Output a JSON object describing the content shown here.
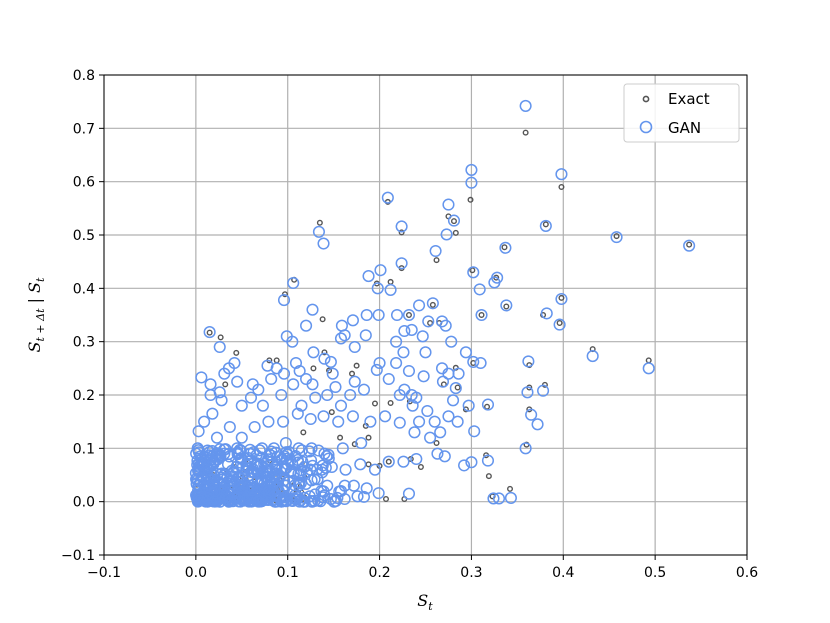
{
  "chart_data": {
    "type": "scatter",
    "xlabel": "S_t",
    "ylabel": "S_{t+Δt} | S_t",
    "xlim": [
      -0.1,
      0.6
    ],
    "ylim": [
      -0.1,
      0.8
    ],
    "xticks": [
      "−0.1",
      "0.0",
      "0.1",
      "0.2",
      "0.3",
      "0.4",
      "0.5",
      "0.6"
    ],
    "yticks": [
      "−0.1",
      "0.0",
      "0.1",
      "0.2",
      "0.3",
      "0.4",
      "0.5",
      "0.6",
      "0.7",
      "0.8"
    ],
    "grid": true,
    "legend_position": "top-right",
    "colors": {
      "exact": "#555555",
      "gan": "#6495ED",
      "grid": "#b0b0b0"
    },
    "series": [
      {
        "name": "Exact",
        "marker": "small-circle",
        "points": [
          [
            0.359,
            0.692
          ],
          [
            0.398,
            0.59
          ],
          [
            0.299,
            0.566
          ],
          [
            0.209,
            0.562
          ],
          [
            0.275,
            0.535
          ],
          [
            0.135,
            0.523
          ],
          [
            0.381,
            0.52
          ],
          [
            0.281,
            0.526
          ],
          [
            0.224,
            0.505
          ],
          [
            0.283,
            0.504
          ],
          [
            0.336,
            0.477
          ],
          [
            0.458,
            0.498
          ],
          [
            0.537,
            0.482
          ],
          [
            0.262,
            0.453
          ],
          [
            0.301,
            0.434
          ],
          [
            0.224,
            0.438
          ],
          [
            0.107,
            0.416
          ],
          [
            0.212,
            0.412
          ],
          [
            0.197,
            0.409
          ],
          [
            0.327,
            0.42
          ],
          [
            0.398,
            0.382
          ],
          [
            0.097,
            0.389
          ],
          [
            0.338,
            0.366
          ],
          [
            0.311,
            0.35
          ],
          [
            0.138,
            0.342
          ],
          [
            0.258,
            0.369
          ],
          [
            0.265,
            0.335
          ],
          [
            0.378,
            0.35
          ],
          [
            0.396,
            0.335
          ],
          [
            0.432,
            0.286
          ],
          [
            0.493,
            0.265
          ],
          [
            0.363,
            0.256
          ],
          [
            0.283,
            0.251
          ],
          [
            0.363,
            0.214
          ],
          [
            0.38,
            0.219
          ],
          [
            0.363,
            0.173
          ],
          [
            0.36,
            0.107
          ],
          [
            0.316,
            0.087
          ],
          [
            0.342,
            0.024
          ],
          [
            0.323,
            0.01
          ],
          [
            0.319,
            0.048
          ],
          [
            0.262,
            0.11
          ],
          [
            0.234,
            0.08
          ],
          [
            0.245,
            0.065
          ],
          [
            0.2,
            0.067
          ],
          [
            0.015,
            0.317
          ],
          [
            0.027,
            0.308
          ],
          [
            0.044,
            0.279
          ],
          [
            0.08,
            0.265
          ],
          [
            0.088,
            0.265
          ],
          [
            0.032,
            0.22
          ],
          [
            0.232,
            0.35
          ],
          [
            0.255,
            0.335
          ],
          [
            0.302,
            0.26
          ],
          [
            0.27,
            0.22
          ],
          [
            0.285,
            0.214
          ],
          [
            0.317,
            0.178
          ],
          [
            0.294,
            0.173
          ],
          [
            0.195,
            0.184
          ],
          [
            0.212,
            0.185
          ],
          [
            0.233,
            0.188
          ],
          [
            0.17,
            0.24
          ],
          [
            0.145,
            0.246
          ],
          [
            0.175,
            0.255
          ],
          [
            0.128,
            0.25
          ],
          [
            0.14,
            0.28
          ],
          [
            0.188,
            0.07
          ],
          [
            0.21,
            0.075
          ],
          [
            0.173,
            0.108
          ],
          [
            0.157,
            0.12
          ],
          [
            0.188,
            0.12
          ],
          [
            0.227,
            0.005
          ],
          [
            0.207,
            0.005
          ],
          [
            0.148,
            0.168
          ],
          [
            0.185,
            0.142
          ],
          [
            0.117,
            0.13
          ]
        ]
      },
      {
        "name": "GAN",
        "marker": "open-circle",
        "points": [
          [
            0.359,
            0.742
          ],
          [
            0.398,
            0.614
          ],
          [
            0.3,
            0.622
          ],
          [
            0.3,
            0.598
          ],
          [
            0.209,
            0.57
          ],
          [
            0.275,
            0.557
          ],
          [
            0.273,
            0.501
          ],
          [
            0.224,
            0.516
          ],
          [
            0.281,
            0.527
          ],
          [
            0.381,
            0.517
          ],
          [
            0.134,
            0.506
          ],
          [
            0.139,
            0.484
          ],
          [
            0.337,
            0.476
          ],
          [
            0.458,
            0.496
          ],
          [
            0.537,
            0.48
          ],
          [
            0.261,
            0.47
          ],
          [
            0.224,
            0.447
          ],
          [
            0.302,
            0.43
          ],
          [
            0.201,
            0.434
          ],
          [
            0.188,
            0.423
          ],
          [
            0.212,
            0.397
          ],
          [
            0.106,
            0.41
          ],
          [
            0.328,
            0.42
          ],
          [
            0.198,
            0.4
          ],
          [
            0.309,
            0.398
          ],
          [
            0.398,
            0.38
          ],
          [
            0.096,
            0.378
          ],
          [
            0.325,
            0.411
          ],
          [
            0.338,
            0.368
          ],
          [
            0.311,
            0.35
          ],
          [
            0.258,
            0.372
          ],
          [
            0.243,
            0.368
          ],
          [
            0.382,
            0.353
          ],
          [
            0.396,
            0.332
          ],
          [
            0.432,
            0.273
          ],
          [
            0.493,
            0.25
          ],
          [
            0.362,
            0.263
          ],
          [
            0.378,
            0.208
          ],
          [
            0.361,
            0.205
          ],
          [
            0.365,
            0.163
          ],
          [
            0.372,
            0.145
          ],
          [
            0.359,
            0.1
          ],
          [
            0.318,
            0.077
          ],
          [
            0.324,
            0.006
          ],
          [
            0.33,
            0.006
          ],
          [
            0.343,
            0.007
          ],
          [
            0.3,
            0.074
          ],
          [
            0.292,
            0.068
          ],
          [
            0.303,
            0.132
          ],
          [
            0.232,
            0.015
          ],
          [
            0.199,
            0.016
          ],
          [
            0.183,
            0.009
          ],
          [
            0.015,
            0.318
          ],
          [
            0.026,
            0.29
          ],
          [
            0.042,
            0.26
          ],
          [
            0.078,
            0.255
          ],
          [
            0.088,
            0.25
          ],
          [
            0.031,
            0.24
          ],
          [
            0.006,
            0.233
          ],
          [
            0.232,
            0.35
          ],
          [
            0.253,
            0.338
          ],
          [
            0.268,
            0.338
          ],
          [
            0.302,
            0.262
          ],
          [
            0.269,
            0.225
          ],
          [
            0.283,
            0.213
          ],
          [
            0.318,
            0.182
          ],
          [
            0.297,
            0.18
          ],
          [
            0.235,
            0.2
          ],
          [
            0.158,
            0.306
          ],
          [
            0.162,
            0.312
          ],
          [
            0.185,
            0.312
          ],
          [
            0.128,
            0.28
          ],
          [
            0.14,
            0.268
          ],
          [
            0.173,
            0.29
          ],
          [
            0.232,
            0.245
          ],
          [
            0.227,
            0.21
          ],
          [
            0.24,
            0.195
          ],
          [
            0.275,
            0.16
          ],
          [
            0.285,
            0.15
          ],
          [
            0.243,
            0.15
          ],
          [
            0.218,
            0.26
          ],
          [
            0.197,
            0.247
          ],
          [
            0.173,
            0.225
          ],
          [
            0.149,
            0.24
          ],
          [
            0.13,
            0.195
          ],
          [
            0.115,
            0.18
          ],
          [
            0.106,
            0.22
          ],
          [
            0.093,
            0.2
          ],
          [
            0.073,
            0.18
          ],
          [
            0.06,
            0.195
          ],
          [
            0.05,
            0.18
          ],
          [
            0.028,
            0.19
          ],
          [
            0.018,
            0.165
          ],
          [
            0.009,
            0.15
          ],
          [
            0.003,
            0.132
          ],
          [
            0.002,
            0.1
          ],
          [
            0.026,
            0.205
          ],
          [
            0.023,
            0.12
          ],
          [
            0.037,
            0.14
          ],
          [
            0.05,
            0.12
          ],
          [
            0.064,
            0.14
          ],
          [
            0.079,
            0.15
          ],
          [
            0.095,
            0.15
          ],
          [
            0.111,
            0.165
          ],
          [
            0.125,
            0.155
          ],
          [
            0.139,
            0.16
          ],
          [
            0.155,
            0.15
          ],
          [
            0.171,
            0.16
          ],
          [
            0.19,
            0.15
          ],
          [
            0.206,
            0.16
          ],
          [
            0.222,
            0.148
          ],
          [
            0.238,
            0.13
          ],
          [
            0.255,
            0.12
          ],
          [
            0.271,
            0.085
          ],
          [
            0.263,
            0.09
          ],
          [
            0.18,
            0.11
          ],
          [
            0.16,
            0.1
          ],
          [
            0.14,
            0.09
          ],
          [
            0.126,
            0.1
          ],
          [
            0.112,
            0.1
          ],
          [
            0.098,
            0.11
          ],
          [
            0.085,
            0.1
          ],
          [
            0.072,
            0.1
          ],
          [
            0.059,
            0.09
          ],
          [
            0.045,
            0.1
          ],
          [
            0.031,
            0.09
          ],
          [
            0.018,
            0.095
          ],
          [
            0.005,
            0.085
          ],
          [
            0.003,
            0.06
          ],
          [
            0.003,
            0.03
          ],
          [
            0.003,
            0.01
          ],
          [
            0.019,
            0.07
          ],
          [
            0.035,
            0.07
          ],
          [
            0.051,
            0.065
          ],
          [
            0.067,
            0.07
          ],
          [
            0.083,
            0.075
          ],
          [
            0.1,
            0.07
          ],
          [
            0.116,
            0.075
          ],
          [
            0.132,
            0.06
          ],
          [
            0.148,
            0.065
          ],
          [
            0.163,
            0.06
          ],
          [
            0.179,
            0.07
          ],
          [
            0.195,
            0.06
          ],
          [
            0.21,
            0.075
          ],
          [
            0.226,
            0.075
          ],
          [
            0.24,
            0.08
          ],
          [
            0.126,
            0.04
          ],
          [
            0.112,
            0.035
          ],
          [
            0.098,
            0.03
          ],
          [
            0.086,
            0.045
          ],
          [
            0.072,
            0.04
          ],
          [
            0.06,
            0.03
          ],
          [
            0.046,
            0.045
          ],
          [
            0.034,
            0.035
          ],
          [
            0.02,
            0.04
          ],
          [
            0.008,
            0.045
          ],
          [
            0.143,
            0.03
          ],
          [
            0.158,
            0.02
          ],
          [
            0.172,
            0.03
          ],
          [
            0.186,
            0.025
          ],
          [
            0.147,
            0.005
          ],
          [
            0.162,
            0.005
          ],
          [
            0.176,
            0.01
          ],
          [
            0.012,
            0.015
          ],
          [
            0.028,
            0.01
          ],
          [
            0.044,
            0.012
          ],
          [
            0.06,
            0.008
          ],
          [
            0.076,
            0.01
          ],
          [
            0.092,
            0.008
          ],
          [
            0.108,
            0.012
          ],
          [
            0.124,
            0.01
          ],
          [
            0.14,
            0.012
          ],
          [
            0.016,
            0.2
          ],
          [
            0.016,
            0.22
          ],
          [
            0.062,
            0.22
          ],
          [
            0.082,
            0.23
          ],
          [
            0.096,
            0.24
          ],
          [
            0.12,
            0.23
          ],
          [
            0.152,
            0.215
          ],
          [
            0.168,
            0.2
          ],
          [
            0.183,
            0.21
          ],
          [
            0.158,
            0.18
          ],
          [
            0.143,
            0.2
          ],
          [
            0.127,
            0.22
          ],
          [
            0.109,
            0.26
          ],
          [
            0.113,
            0.245
          ],
          [
            0.147,
            0.262
          ],
          [
            0.2,
            0.26
          ],
          [
            0.21,
            0.23
          ],
          [
            0.222,
            0.2
          ],
          [
            0.236,
            0.18
          ],
          [
            0.252,
            0.17
          ],
          [
            0.26,
            0.15
          ],
          [
            0.266,
            0.13
          ],
          [
            0.28,
            0.19
          ],
          [
            0.268,
            0.25
          ],
          [
            0.25,
            0.28
          ],
          [
            0.226,
            0.28
          ],
          [
            0.218,
            0.3
          ],
          [
            0.235,
            0.322
          ],
          [
            0.247,
            0.31
          ],
          [
            0.272,
            0.33
          ],
          [
            0.278,
            0.3
          ],
          [
            0.294,
            0.28
          ],
          [
            0.31,
            0.26
          ],
          [
            0.286,
            0.24
          ],
          [
            0.275,
            0.24
          ],
          [
            0.248,
            0.235
          ],
          [
            0.227,
            0.32
          ],
          [
            0.219,
            0.35
          ],
          [
            0.199,
            0.35
          ],
          [
            0.186,
            0.35
          ],
          [
            0.171,
            0.34
          ],
          [
            0.159,
            0.33
          ],
          [
            0.127,
            0.36
          ],
          [
            0.12,
            0.33
          ],
          [
            0.099,
            0.31
          ],
          [
            0.105,
            0.3
          ],
          [
            0.068,
            0.21
          ],
          [
            0.045,
            0.225
          ],
          [
            0.036,
            0.25
          ]
        ]
      }
    ]
  }
}
